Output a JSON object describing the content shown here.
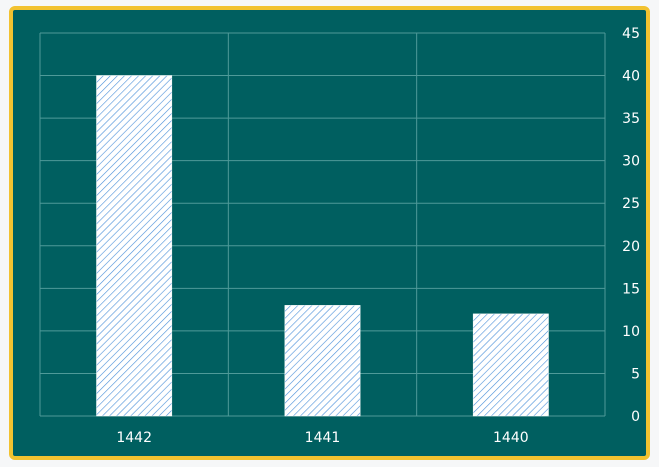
{
  "chart_data": {
    "type": "bar",
    "title": "",
    "xlabel": "",
    "ylabel": "",
    "categories": [
      "1442",
      "1441",
      "1440"
    ],
    "values": [
      40,
      13,
      12
    ],
    "ylim": [
      0,
      45
    ],
    "yticks": [
      0,
      5,
      10,
      15,
      20,
      25,
      30,
      35,
      40,
      45
    ],
    "y_axis_side": "right",
    "grid": true,
    "legend": "none",
    "bar_fill": "diagonal-hatch",
    "colors": {
      "background": "#005f60",
      "border": "#f2c230",
      "grid": "#4f9a99",
      "bar_fill": "#ffffff",
      "bar_hatch": "#4a90d9",
      "text": "#ffffff"
    }
  }
}
